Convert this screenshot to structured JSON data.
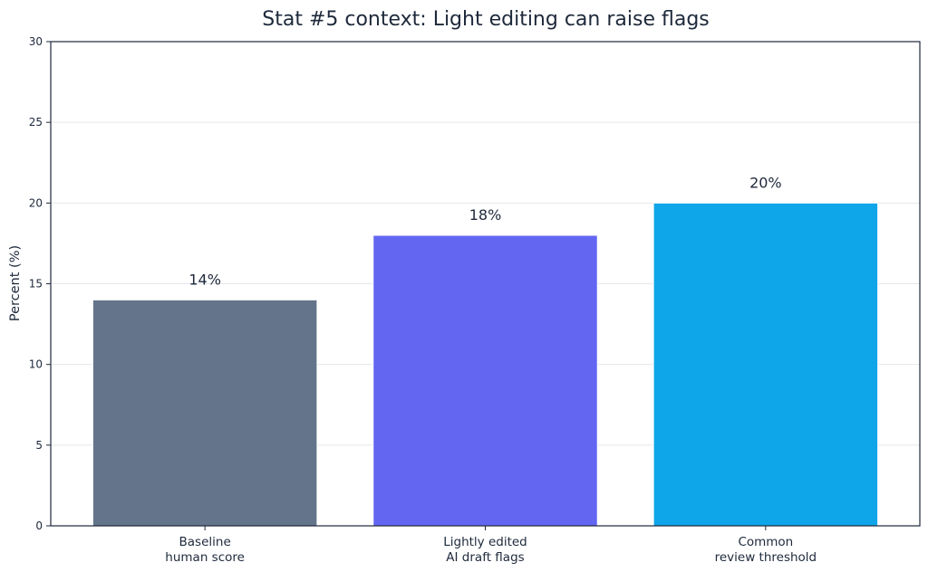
{
  "chart_data": {
    "type": "bar",
    "title": "Stat #5 context: Light editing can raise flags",
    "xlabel": "",
    "ylabel": "Percent (%)",
    "ylim": [
      0,
      30
    ],
    "yticks": [
      0,
      5,
      10,
      15,
      20,
      25,
      30
    ],
    "grid": true,
    "categories": [
      [
        "Baseline",
        "human score"
      ],
      [
        "Lightly edited",
        "AI draft flags"
      ],
      [
        "Common",
        "review threshold"
      ]
    ],
    "values": [
      14,
      18,
      20
    ],
    "value_labels": [
      "14%",
      "18%",
      "20%"
    ],
    "colors": [
      "#64748b",
      "#6366f1",
      "#0ea5e9"
    ]
  }
}
